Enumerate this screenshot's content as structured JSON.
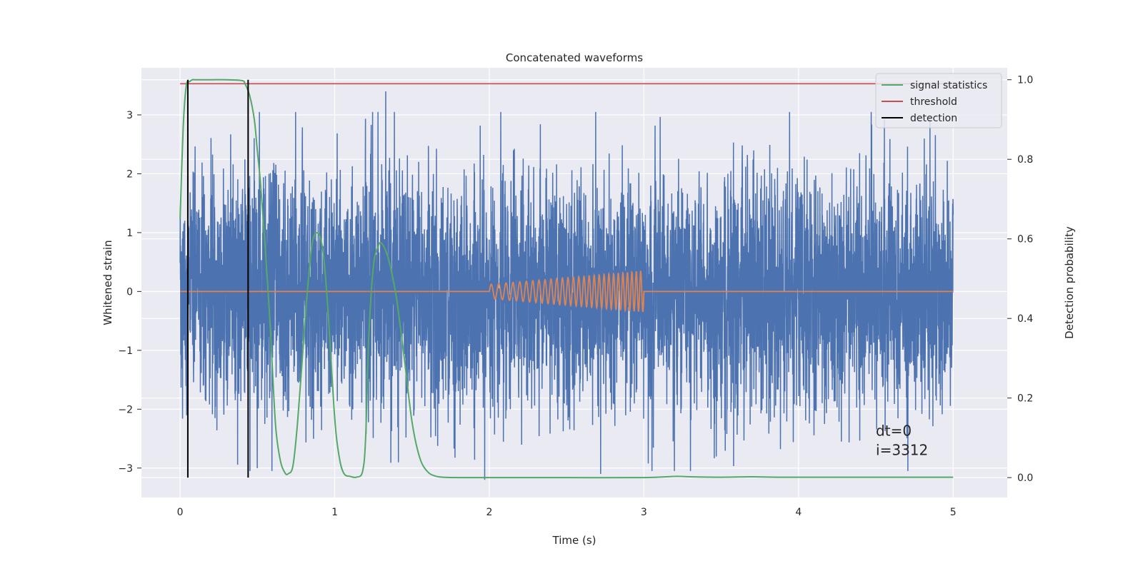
{
  "chart_data": {
    "type": "line",
    "title": "Concatenated waveforms",
    "xlabel": "Time (s)",
    "ylabel": "Whitened strain",
    "y2label": "Detection probability",
    "xlim": [
      -0.25,
      5.35
    ],
    "ylim": [
      -3.5,
      3.8
    ],
    "y2lim": [
      -0.05,
      1.03
    ],
    "xticks": [
      "0",
      "1",
      "2",
      "3",
      "4",
      "5"
    ],
    "yticks": [
      "−3",
      "−2",
      "−1",
      "0",
      "1",
      "2",
      "3"
    ],
    "y2ticks": [
      "0.0",
      "0.2",
      "0.4",
      "0.6",
      "0.8",
      "1.0"
    ],
    "grid": true,
    "legend_position": "top-right",
    "legend": [
      {
        "label": "signal statistics",
        "color": "#55a868"
      },
      {
        "label": "threshold",
        "color": "#c44e52"
      },
      {
        "label": "detection",
        "color": "#000000"
      }
    ],
    "series": [
      {
        "name": "",
        "axis": "left",
        "color": "#4c72b0",
        "description": "whitened noise strain, roughly Gaussian with std ~1, sampled over 0 to 5 s",
        "x_range": [
          0,
          5
        ],
        "amplitude_std": 1.0,
        "spike_examples": [
          {
            "x": 1.33,
            "y": 3.4
          },
          {
            "x": 4.85,
            "y": 2.95
          },
          {
            "x": 1.97,
            "y": -3.2
          },
          {
            "x": 2.72,
            "y": -3.1
          }
        ]
      },
      {
        "name": "",
        "axis": "left",
        "color": "#dd8452",
        "description": "injected chirp, zero outside 2 to 3 s",
        "x_range": [
          0,
          5
        ],
        "chirp_start": 2.0,
        "chirp_end": 3.0,
        "chirp_amplitude_start": 0.12,
        "chirp_amplitude_end": 0.35
      },
      {
        "name": "signal statistics",
        "axis": "right",
        "color": "#55a868",
        "x": [
          0.0,
          0.02,
          0.04,
          0.06,
          0.08,
          0.1,
          0.2,
          0.3,
          0.4,
          0.42,
          0.45,
          0.48,
          0.5,
          0.52,
          0.55,
          0.58,
          0.6,
          0.62,
          0.65,
          0.68,
          0.7,
          0.73,
          0.76,
          0.8,
          0.83,
          0.86,
          0.9,
          0.93,
          0.96,
          1.0,
          1.03,
          1.06,
          1.1,
          1.14,
          1.18,
          1.2,
          1.22,
          1.25,
          1.28,
          1.3,
          1.33,
          1.36,
          1.4,
          1.45,
          1.5,
          1.55,
          1.6,
          1.65,
          1.7,
          1.8,
          2.0,
          2.5,
          3.0,
          3.2,
          3.3,
          3.5,
          3.7,
          3.9,
          4.5,
          5.0
        ],
        "y": [
          0.65,
          0.88,
          0.985,
          0.995,
          1.0,
          1.0,
          1.0,
          1.0,
          0.998,
          0.99,
          0.96,
          0.9,
          0.82,
          0.74,
          0.58,
          0.4,
          0.25,
          0.12,
          0.04,
          0.011,
          0.01,
          0.03,
          0.14,
          0.35,
          0.5,
          0.6,
          0.61,
          0.55,
          0.4,
          0.15,
          0.05,
          0.01,
          0.003,
          0.001,
          0.015,
          0.1,
          0.35,
          0.53,
          0.58,
          0.59,
          0.57,
          0.53,
          0.45,
          0.3,
          0.14,
          0.05,
          0.015,
          0.004,
          0.001,
          0.0,
          0.0,
          0.0,
          0.0,
          0.003,
          0.002,
          0.001,
          0.002,
          0.001,
          0.001,
          0.001
        ]
      },
      {
        "name": "threshold",
        "axis": "right",
        "color": "#c44e52",
        "x": [
          0,
          5
        ],
        "y": [
          0.99,
          0.99
        ]
      },
      {
        "name": "detection",
        "axis": "right",
        "color": "#000000",
        "type": "vertical_lines",
        "x": [
          0.05,
          0.44
        ],
        "y_range": [
          0.0,
          1.0
        ]
      }
    ],
    "annotations": [
      {
        "text": "dt=0",
        "x": 4.5,
        "y": -2.45
      },
      {
        "text": "i=3312",
        "x": 4.5,
        "y": -2.78
      }
    ]
  }
}
